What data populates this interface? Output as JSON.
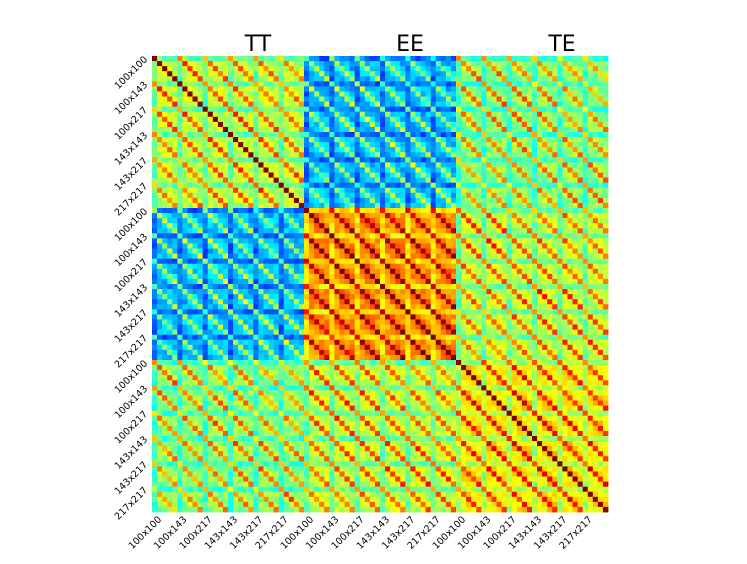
{
  "chart_data": {
    "type": "heatmap",
    "title": "",
    "column_titles": [
      "TT",
      "EE",
      "TE"
    ],
    "blocks": [
      "TT",
      "EE",
      "TE"
    ],
    "tick_labels": [
      "100x100",
      "100x143",
      "100x217",
      "143x143",
      "143x217",
      "217x217"
    ],
    "sub_block_relative_sizes": [
      1,
      1,
      1,
      1,
      1,
      1
    ],
    "block_mean_correlation": [
      [
        0.55,
        0.3,
        0.5
      ],
      [
        0.3,
        0.72,
        0.55
      ],
      [
        0.5,
        0.55,
        0.62
      ]
    ],
    "colormap": "jet",
    "color_range": [
      0,
      1
    ],
    "xlabel": "",
    "ylabel": ""
  },
  "colors": {
    "low": "#00007f",
    "mid_low": "#00d4ff",
    "mid": "#7dff7a",
    "mid_high": "#ffe600",
    "high": "#ff4000",
    "max": "#7f0000"
  }
}
